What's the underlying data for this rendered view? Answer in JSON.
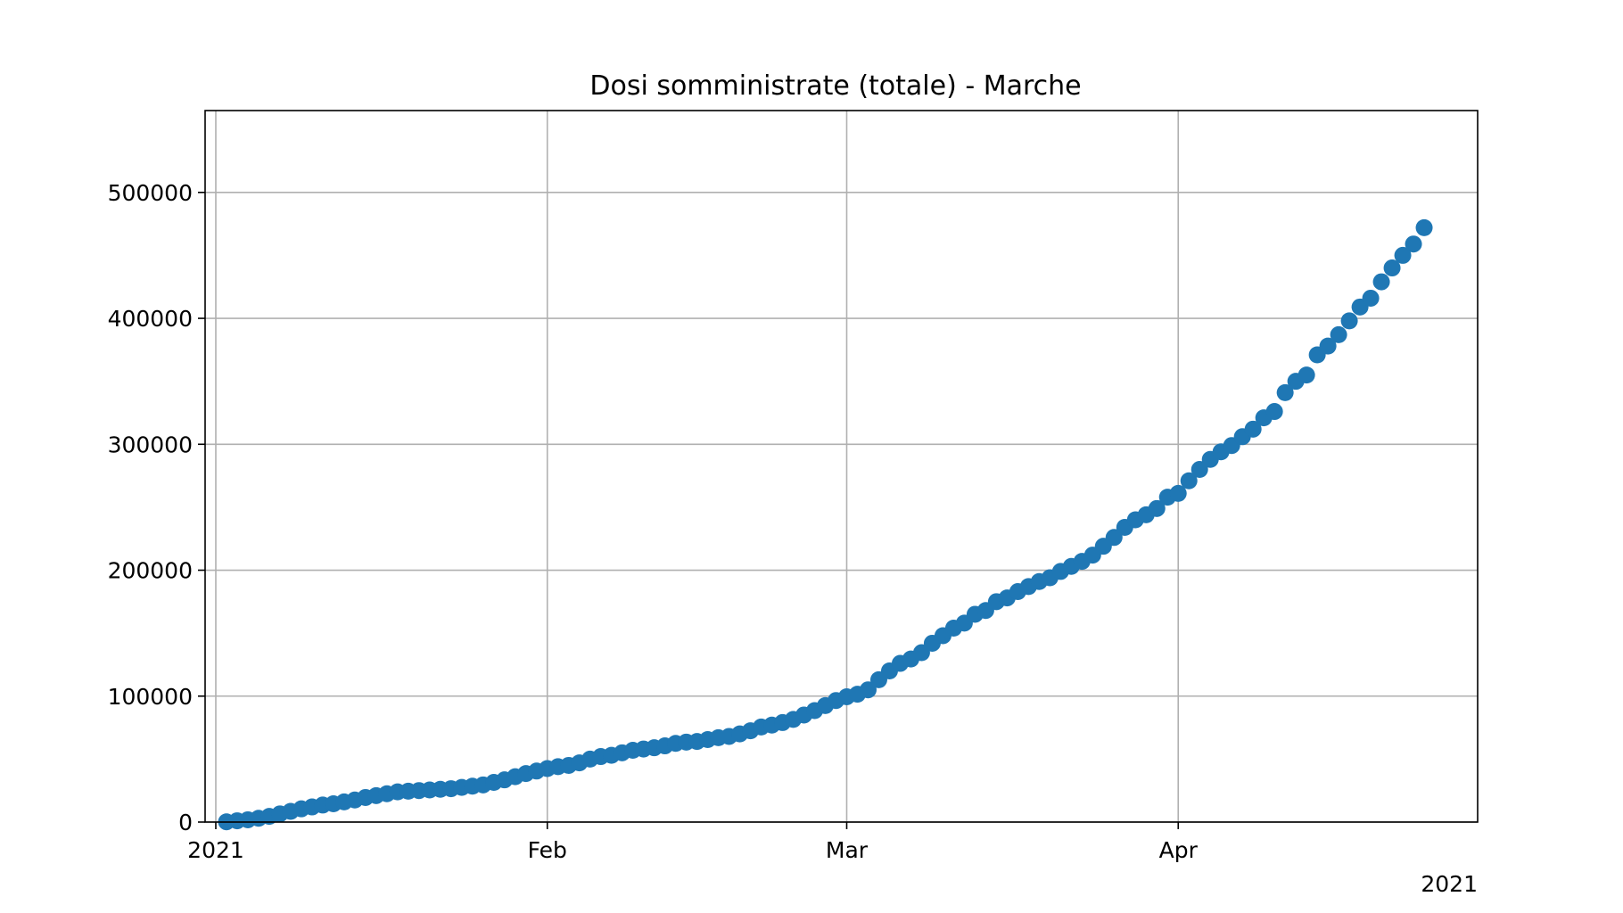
{
  "chart_data": {
    "type": "scatter",
    "title": "Dosi somministrate (totale) - Marche",
    "xlabel": "",
    "ylabel": "",
    "x_axis": {
      "kind": "date",
      "range": [
        "2020-12-31",
        "2021-04-29"
      ],
      "ticks": [
        {
          "date": "2021-01-01",
          "label": "2021"
        },
        {
          "date": "2021-02-01",
          "label": "Feb"
        },
        {
          "date": "2021-03-01",
          "label": "Mar"
        },
        {
          "date": "2021-04-01",
          "label": "Apr"
        }
      ],
      "offset_label": "2021"
    },
    "y_axis": {
      "range": [
        0,
        565000
      ],
      "ticks": [
        {
          "value": 0,
          "label": "0"
        },
        {
          "value": 100000,
          "label": "100000"
        },
        {
          "value": 200000,
          "label": "200000"
        },
        {
          "value": 300000,
          "label": "300000"
        },
        {
          "value": 400000,
          "label": "400000"
        },
        {
          "value": 500000,
          "label": "500000"
        }
      ]
    },
    "grid": true,
    "marker_color": "#1f77b4",
    "series": [
      {
        "points": [
          {
            "x": "2021-01-02",
            "y": 200
          },
          {
            "x": "2021-01-03",
            "y": 1000
          },
          {
            "x": "2021-01-04",
            "y": 1800
          },
          {
            "x": "2021-01-05",
            "y": 3000
          },
          {
            "x": "2021-01-06",
            "y": 4500
          },
          {
            "x": "2021-01-07",
            "y": 6500
          },
          {
            "x": "2021-01-08",
            "y": 8500
          },
          {
            "x": "2021-01-09",
            "y": 10500
          },
          {
            "x": "2021-01-10",
            "y": 12000
          },
          {
            "x": "2021-01-11",
            "y": 13500
          },
          {
            "x": "2021-01-12",
            "y": 14500
          },
          {
            "x": "2021-01-13",
            "y": 16000
          },
          {
            "x": "2021-01-14",
            "y": 17500
          },
          {
            "x": "2021-01-15",
            "y": 19500
          },
          {
            "x": "2021-01-16",
            "y": 21000
          },
          {
            "x": "2021-01-17",
            "y": 22500
          },
          {
            "x": "2021-01-18",
            "y": 24000
          },
          {
            "x": "2021-01-19",
            "y": 24500
          },
          {
            "x": "2021-01-20",
            "y": 25000
          },
          {
            "x": "2021-01-21",
            "y": 25500
          },
          {
            "x": "2021-01-22",
            "y": 26000
          },
          {
            "x": "2021-01-23",
            "y": 26500
          },
          {
            "x": "2021-01-24",
            "y": 27500
          },
          {
            "x": "2021-01-25",
            "y": 28500
          },
          {
            "x": "2021-01-26",
            "y": 29500
          },
          {
            "x": "2021-01-27",
            "y": 31500
          },
          {
            "x": "2021-01-28",
            "y": 33500
          },
          {
            "x": "2021-01-29",
            "y": 36000
          },
          {
            "x": "2021-01-30",
            "y": 38500
          },
          {
            "x": "2021-01-31",
            "y": 40500
          },
          {
            "x": "2021-02-01",
            "y": 42500
          },
          {
            "x": "2021-02-02",
            "y": 44000
          },
          {
            "x": "2021-02-03",
            "y": 45000
          },
          {
            "x": "2021-02-04",
            "y": 47000
          },
          {
            "x": "2021-02-05",
            "y": 50000
          },
          {
            "x": "2021-02-06",
            "y": 52000
          },
          {
            "x": "2021-02-07",
            "y": 53000
          },
          {
            "x": "2021-02-08",
            "y": 55000
          },
          {
            "x": "2021-02-09",
            "y": 57000
          },
          {
            "x": "2021-02-10",
            "y": 58000
          },
          {
            "x": "2021-02-11",
            "y": 59000
          },
          {
            "x": "2021-02-12",
            "y": 60500
          },
          {
            "x": "2021-02-13",
            "y": 62500
          },
          {
            "x": "2021-02-14",
            "y": 63500
          },
          {
            "x": "2021-02-15",
            "y": 64000
          },
          {
            "x": "2021-02-16",
            "y": 65500
          },
          {
            "x": "2021-02-17",
            "y": 67000
          },
          {
            "x": "2021-02-18",
            "y": 68000
          },
          {
            "x": "2021-02-19",
            "y": 70000
          },
          {
            "x": "2021-02-20",
            "y": 72500
          },
          {
            "x": "2021-02-21",
            "y": 75500
          },
          {
            "x": "2021-02-22",
            "y": 77000
          },
          {
            "x": "2021-02-23",
            "y": 79000
          },
          {
            "x": "2021-02-24",
            "y": 81500
          },
          {
            "x": "2021-02-25",
            "y": 85000
          },
          {
            "x": "2021-02-26",
            "y": 88500
          },
          {
            "x": "2021-02-27",
            "y": 92500
          },
          {
            "x": "2021-02-28",
            "y": 96500
          },
          {
            "x": "2021-03-01",
            "y": 99500
          },
          {
            "x": "2021-03-02",
            "y": 101500
          },
          {
            "x": "2021-03-03",
            "y": 105000
          },
          {
            "x": "2021-03-04",
            "y": 113000
          },
          {
            "x": "2021-03-05",
            "y": 120000
          },
          {
            "x": "2021-03-06",
            "y": 126000
          },
          {
            "x": "2021-03-07",
            "y": 129500
          },
          {
            "x": "2021-03-08",
            "y": 134500
          },
          {
            "x": "2021-03-09",
            "y": 142000
          },
          {
            "x": "2021-03-10",
            "y": 148000
          },
          {
            "x": "2021-03-11",
            "y": 154000
          },
          {
            "x": "2021-03-12",
            "y": 158000
          },
          {
            "x": "2021-03-13",
            "y": 165000
          },
          {
            "x": "2021-03-14",
            "y": 168000
          },
          {
            "x": "2021-03-15",
            "y": 175000
          },
          {
            "x": "2021-03-16",
            "y": 178000
          },
          {
            "x": "2021-03-17",
            "y": 183000
          },
          {
            "x": "2021-03-18",
            "y": 187000
          },
          {
            "x": "2021-03-19",
            "y": 191000
          },
          {
            "x": "2021-03-20",
            "y": 194000
          },
          {
            "x": "2021-03-21",
            "y": 199000
          },
          {
            "x": "2021-03-22",
            "y": 203000
          },
          {
            "x": "2021-03-23",
            "y": 207000
          },
          {
            "x": "2021-03-24",
            "y": 212000
          },
          {
            "x": "2021-03-25",
            "y": 219000
          },
          {
            "x": "2021-03-26",
            "y": 226000
          },
          {
            "x": "2021-03-27",
            "y": 234000
          },
          {
            "x": "2021-03-28",
            "y": 240000
          },
          {
            "x": "2021-03-29",
            "y": 244000
          },
          {
            "x": "2021-03-30",
            "y": 249000
          },
          {
            "x": "2021-03-31",
            "y": 258000
          },
          {
            "x": "2021-04-01",
            "y": 261000
          },
          {
            "x": "2021-04-02",
            "y": 271000
          },
          {
            "x": "2021-04-03",
            "y": 280000
          },
          {
            "x": "2021-04-04",
            "y": 288000
          },
          {
            "x": "2021-04-05",
            "y": 294000
          },
          {
            "x": "2021-04-06",
            "y": 299000
          },
          {
            "x": "2021-04-07",
            "y": 306000
          },
          {
            "x": "2021-04-08",
            "y": 312000
          },
          {
            "x": "2021-04-09",
            "y": 321000
          },
          {
            "x": "2021-04-10",
            "y": 326000
          },
          {
            "x": "2021-04-11",
            "y": 341000
          },
          {
            "x": "2021-04-12",
            "y": 350000
          },
          {
            "x": "2021-04-13",
            "y": 355000
          },
          {
            "x": "2021-04-14",
            "y": 371000
          },
          {
            "x": "2021-04-15",
            "y": 378000
          },
          {
            "x": "2021-04-16",
            "y": 387000
          },
          {
            "x": "2021-04-17",
            "y": 398000
          },
          {
            "x": "2021-04-18",
            "y": 409000
          },
          {
            "x": "2021-04-19",
            "y": 416000
          },
          {
            "x": "2021-04-20",
            "y": 429000
          },
          {
            "x": "2021-04-21",
            "y": 440000
          },
          {
            "x": "2021-04-22",
            "y": 450000
          },
          {
            "x": "2021-04-23",
            "y": 459000
          },
          {
            "x": "2021-04-24",
            "y": 472000
          }
        ]
      }
    ]
  }
}
